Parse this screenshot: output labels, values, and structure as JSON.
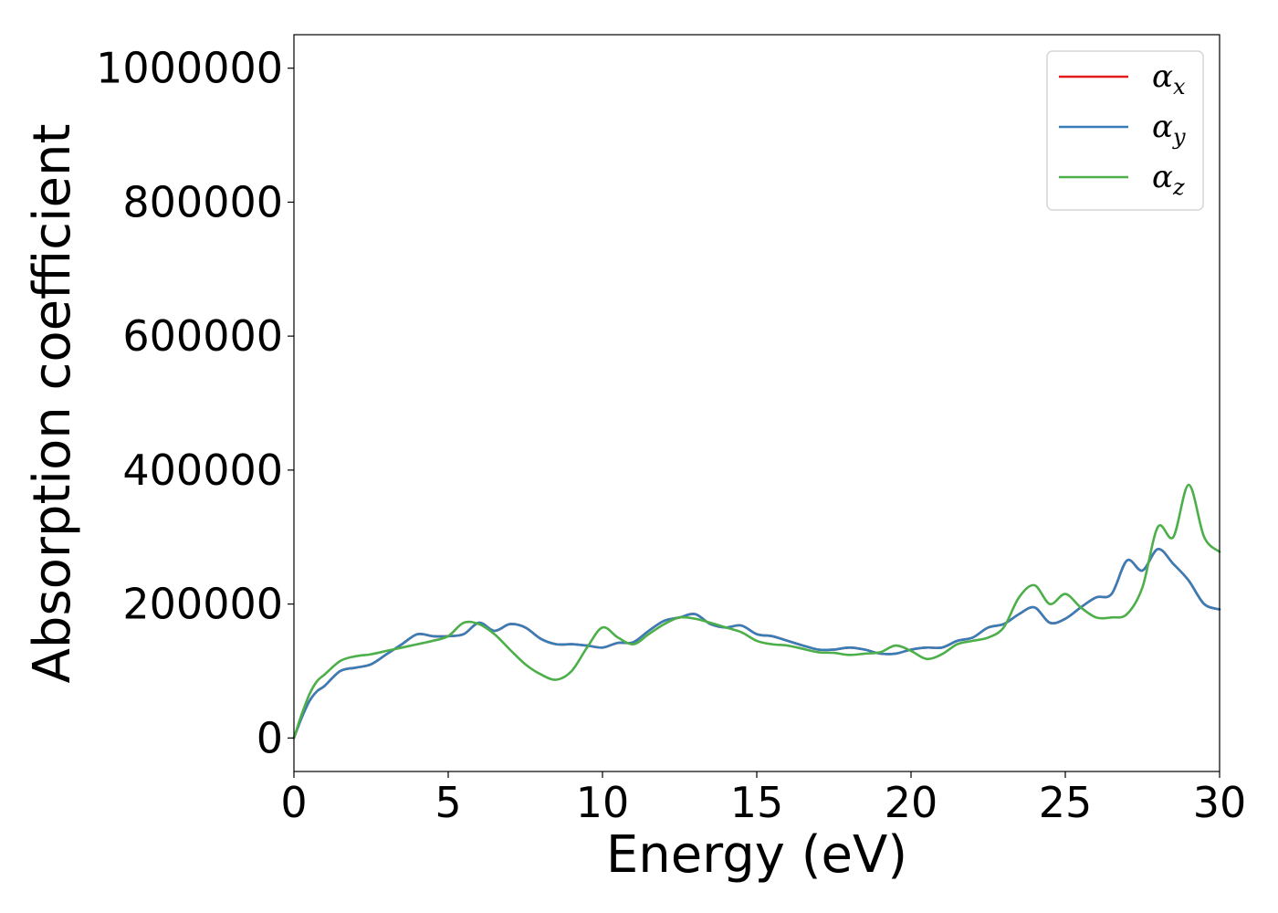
{
  "chart_data": {
    "type": "line",
    "title": "",
    "xlabel": "Energy (eV)",
    "ylabel": "Absorption coefficient",
    "xlim": [
      0,
      30
    ],
    "ylim": [
      -50000,
      1050000
    ],
    "xticks": [
      0,
      5,
      10,
      15,
      20,
      25,
      30
    ],
    "yticks": [
      0,
      200000,
      400000,
      600000,
      800000,
      1000000
    ],
    "xtick_labels": [
      "0",
      "5",
      "10",
      "15",
      "20",
      "25",
      "30"
    ],
    "ytick_labels": [
      "0",
      "200000",
      "400000",
      "600000",
      "800000",
      "1000000"
    ],
    "grid": false,
    "legend_position": "top-right",
    "series": [
      {
        "name": "α",
        "subscript": "x",
        "color": "#e41a1c",
        "x": [
          0,
          0.25,
          0.5,
          0.75,
          1,
          1.5,
          2,
          2.5,
          3,
          3.5,
          4,
          4.5,
          5,
          5.5,
          6,
          6.5,
          7,
          7.5,
          8,
          8.5,
          9,
          9.5,
          10,
          10.5,
          11,
          11.5,
          12,
          12.5,
          13,
          13.5,
          14,
          14.5,
          15,
          15.5,
          16,
          16.5,
          17,
          17.5,
          18,
          18.5,
          19,
          19.5,
          20,
          20.5,
          21,
          21.5,
          22,
          22.5,
          23,
          23.5,
          24,
          24.5,
          25,
          25.5,
          26,
          26.5,
          27,
          27.5,
          28,
          28.5,
          29,
          29.5,
          30
        ],
        "y": [
          0,
          30000,
          55000,
          70000,
          78000,
          100000,
          105000,
          110000,
          125000,
          140000,
          155000,
          152000,
          152000,
          155000,
          172000,
          160000,
          170000,
          165000,
          148000,
          140000,
          140000,
          138000,
          135000,
          142000,
          143000,
          160000,
          175000,
          180000,
          185000,
          170000,
          165000,
          168000,
          155000,
          152000,
          145000,
          138000,
          132000,
          132000,
          135000,
          132000,
          126000,
          126000,
          132000,
          135000,
          135000,
          145000,
          150000,
          165000,
          170000,
          185000,
          195000,
          172000,
          178000,
          195000,
          210000,
          215000,
          265000,
          250000,
          282000,
          260000,
          235000,
          200000,
          192000
        ]
      },
      {
        "name": "α",
        "subscript": "y",
        "color": "#377eb8",
        "x": [
          0,
          0.25,
          0.5,
          0.75,
          1,
          1.5,
          2,
          2.5,
          3,
          3.5,
          4,
          4.5,
          5,
          5.5,
          6,
          6.5,
          7,
          7.5,
          8,
          8.5,
          9,
          9.5,
          10,
          10.5,
          11,
          11.5,
          12,
          12.5,
          13,
          13.5,
          14,
          14.5,
          15,
          15.5,
          16,
          16.5,
          17,
          17.5,
          18,
          18.5,
          19,
          19.5,
          20,
          20.5,
          21,
          21.5,
          22,
          22.5,
          23,
          23.5,
          24,
          24.5,
          25,
          25.5,
          26,
          26.5,
          27,
          27.5,
          28,
          28.5,
          29,
          29.5,
          30
        ],
        "y": [
          0,
          30000,
          55000,
          70000,
          78000,
          100000,
          105000,
          110000,
          125000,
          140000,
          155000,
          152000,
          152000,
          155000,
          172000,
          160000,
          170000,
          165000,
          148000,
          140000,
          140000,
          138000,
          135000,
          142000,
          143000,
          160000,
          175000,
          180000,
          185000,
          170000,
          165000,
          168000,
          155000,
          152000,
          145000,
          138000,
          132000,
          132000,
          135000,
          132000,
          126000,
          126000,
          132000,
          135000,
          135000,
          145000,
          150000,
          165000,
          170000,
          185000,
          195000,
          172000,
          178000,
          195000,
          210000,
          215000,
          265000,
          250000,
          282000,
          260000,
          235000,
          200000,
          192000
        ]
      },
      {
        "name": "α",
        "subscript": "z",
        "color": "#4daf4a",
        "x": [
          0,
          0.25,
          0.5,
          0.75,
          1,
          1.5,
          2,
          2.5,
          3,
          3.5,
          4,
          4.5,
          5,
          5.5,
          6,
          6.5,
          7,
          7.5,
          8,
          8.5,
          9,
          9.5,
          10,
          10.5,
          11,
          11.5,
          12,
          12.5,
          13,
          13.5,
          14,
          14.5,
          15,
          15.5,
          16,
          16.5,
          17,
          17.5,
          18,
          18.5,
          19,
          19.5,
          20,
          20.5,
          21,
          21.5,
          22,
          22.5,
          23,
          23.5,
          24,
          24.5,
          25,
          25.5,
          26,
          26.5,
          27,
          27.5,
          28,
          28.5,
          29,
          29.5,
          30
        ],
        "y": [
          0,
          35000,
          65000,
          85000,
          95000,
          115000,
          122000,
          125000,
          130000,
          135000,
          140000,
          145000,
          152000,
          172000,
          170000,
          155000,
          132000,
          110000,
          95000,
          87000,
          100000,
          135000,
          165000,
          150000,
          140000,
          155000,
          170000,
          180000,
          178000,
          172000,
          165000,
          158000,
          145000,
          140000,
          138000,
          133000,
          128000,
          127000,
          124000,
          126000,
          128000,
          138000,
          130000,
          118000,
          125000,
          140000,
          145000,
          150000,
          165000,
          210000,
          228000,
          200000,
          215000,
          195000,
          180000,
          180000,
          185000,
          225000,
          315000,
          300000,
          378000,
          300000,
          278000
        ]
      }
    ]
  }
}
